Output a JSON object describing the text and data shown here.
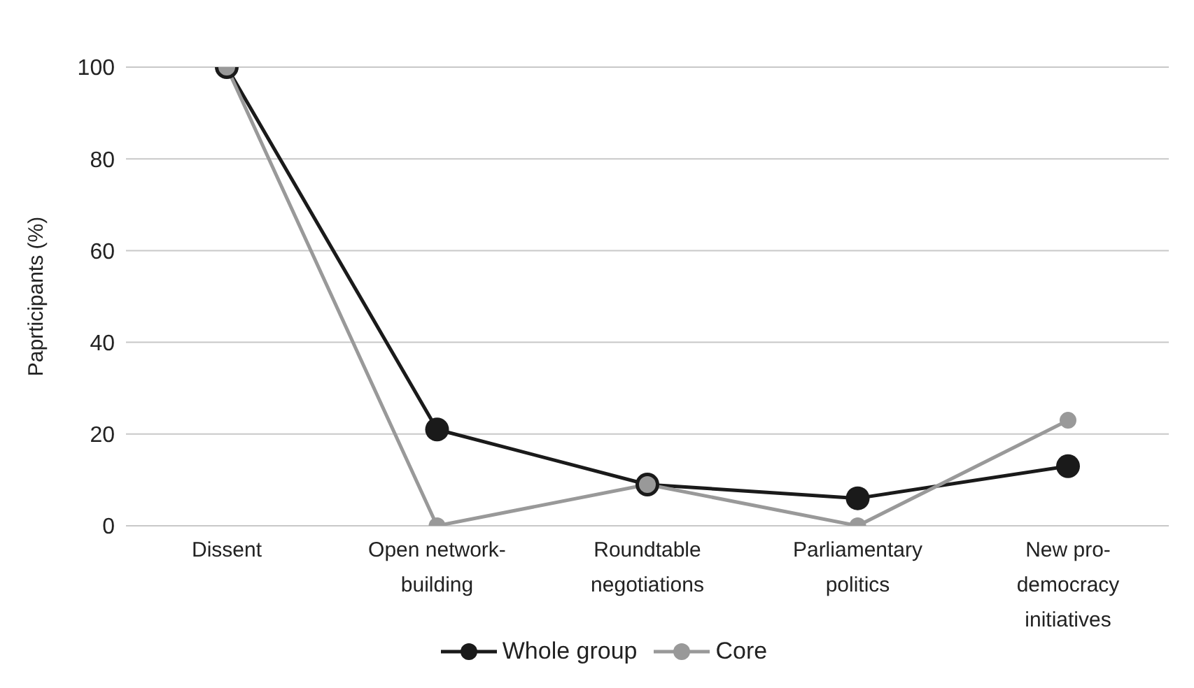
{
  "chart_data": {
    "type": "line",
    "ylabel": "Paprticipants (%)",
    "categories": [
      "Dissent",
      "Open network-building",
      "Roundtable negotiations",
      "Parliamentary politics",
      "New pro-democracy initiatives"
    ],
    "series": [
      {
        "name": "Whole group",
        "color": "#1a1a1a",
        "values": [
          100,
          21,
          9,
          6,
          13
        ]
      },
      {
        "name": "Core",
        "color": "#999999",
        "values": [
          100,
          0,
          9,
          0,
          23
        ]
      }
    ],
    "ylim": [
      0,
      100
    ],
    "yticks": [
      0,
      20,
      40,
      60,
      80,
      100
    ],
    "grid": "y",
    "legend": "bottom",
    "marker": "circle",
    "line_style": "solid"
  }
}
